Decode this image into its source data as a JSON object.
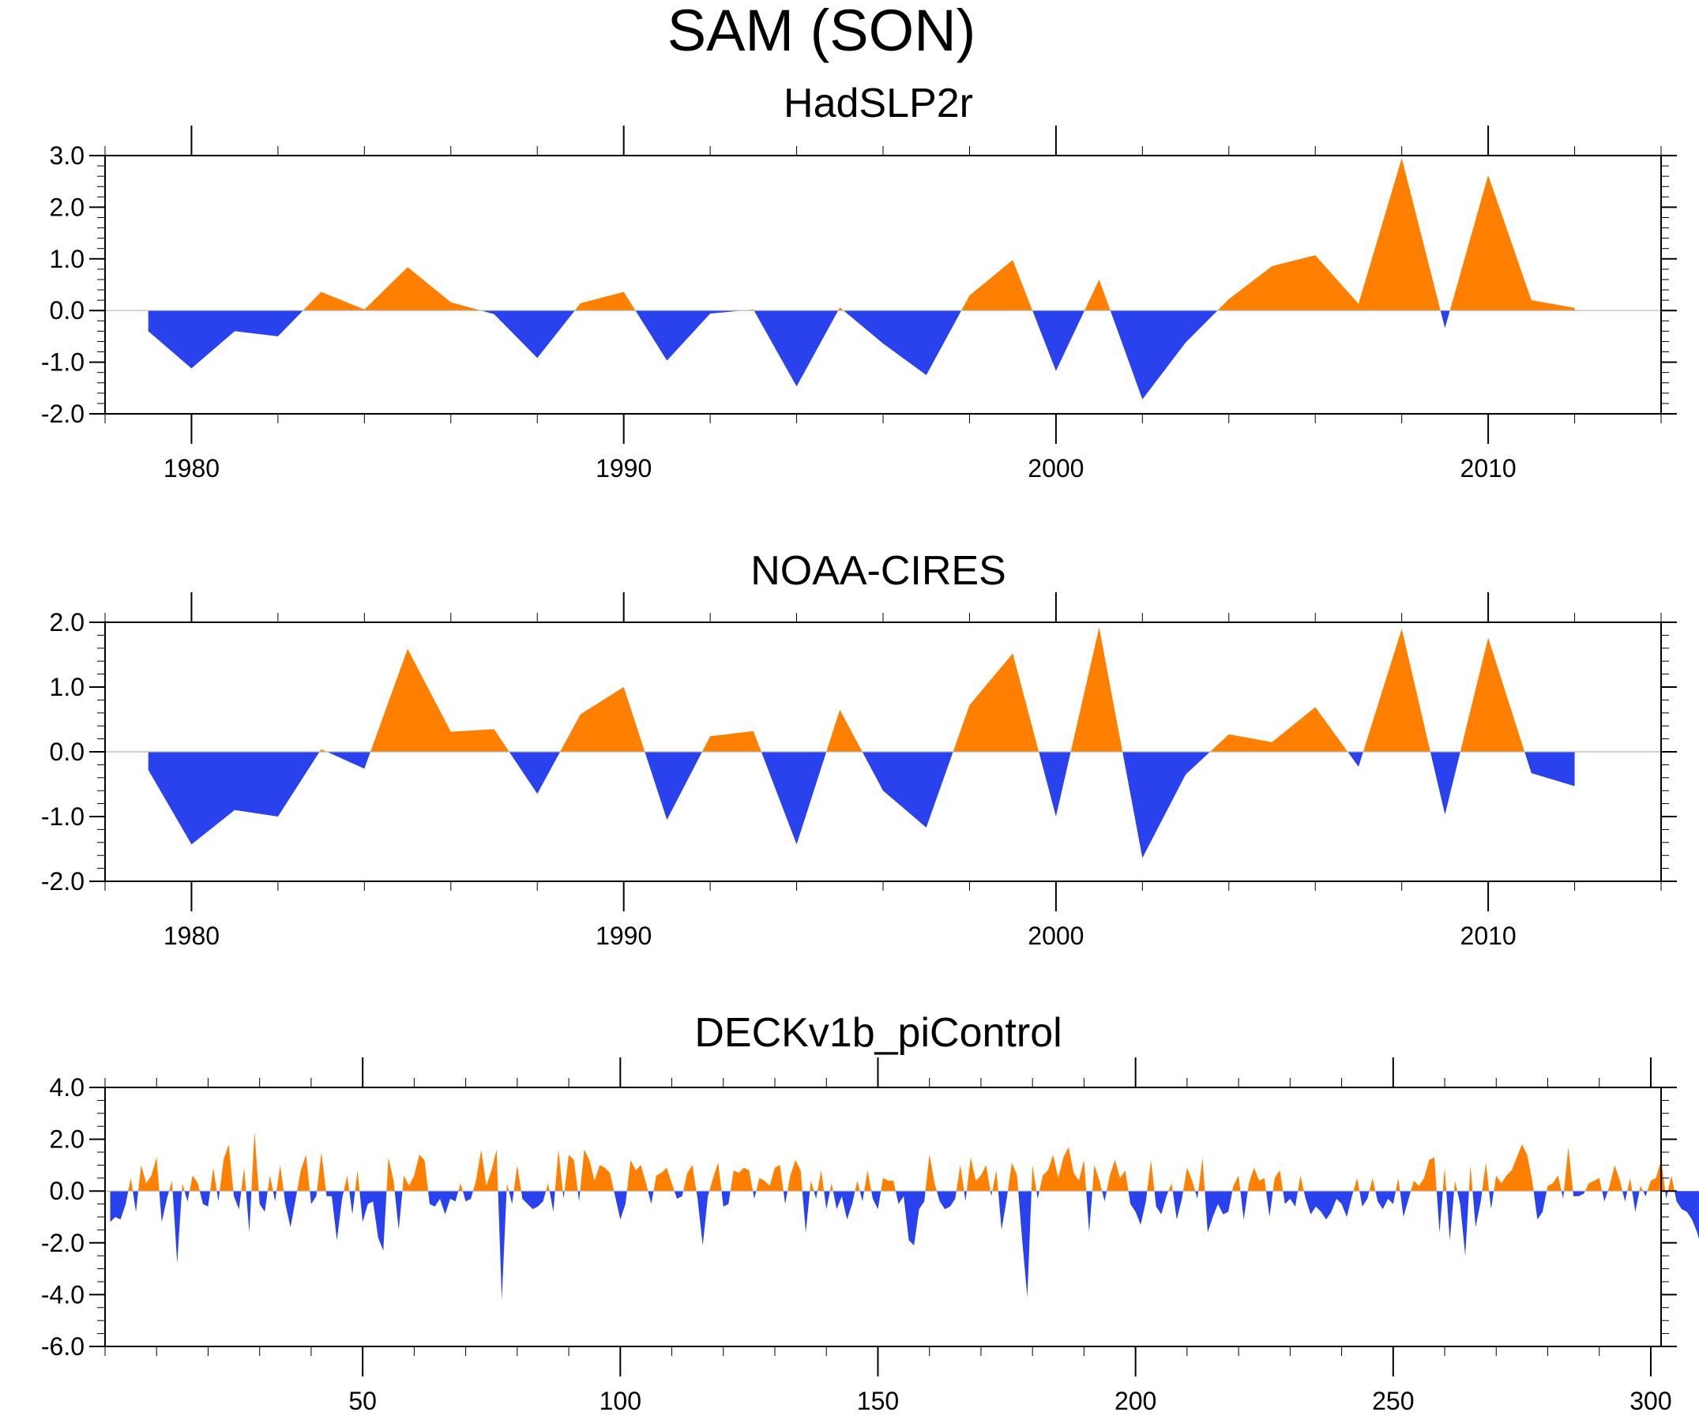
{
  "figure": {
    "title": "SAM (SON)"
  },
  "colors": {
    "positive": "#ff8000",
    "negative": "#2a41ee",
    "axis": "#000000",
    "zero_line": "#b4b4b4"
  },
  "chart_data": [
    {
      "type": "area",
      "title": "HadSLP2r",
      "xlabel": "",
      "ylabel": "",
      "xlim": [
        1978,
        2014
      ],
      "ylim": [
        -2.0,
        3.0
      ],
      "ytick_values": [
        -2.0,
        -1.0,
        0.0,
        1.0,
        2.0,
        3.0
      ],
      "ytick_labels": [
        "-2.0",
        "-1.0",
        "0.0",
        "1.0",
        "2.0",
        "3.0"
      ],
      "xtick_values": [
        1980,
        1990,
        2000,
        2010
      ],
      "xtick_labels": [
        "1980",
        "1990",
        "2000",
        "2010"
      ],
      "x": [
        1979,
        1980,
        1981,
        1982,
        1983,
        1984,
        1985,
        1986,
        1987,
        1988,
        1989,
        1990,
        1991,
        1992,
        1993,
        1994,
        1995,
        1996,
        1997,
        1998,
        1999,
        2000,
        2001,
        2002,
        2003,
        2004,
        2005,
        2006,
        2007,
        2008,
        2009,
        2010,
        2011,
        2012
      ],
      "values": [
        -0.4,
        -1.12,
        -0.4,
        -0.5,
        0.36,
        0.02,
        0.84,
        0.16,
        -0.07,
        -0.92,
        0.14,
        0.36,
        -0.97,
        -0.06,
        0.02,
        -1.47,
        0.06,
        -0.64,
        -1.25,
        0.29,
        0.98,
        -1.17,
        0.6,
        -1.72,
        -0.62,
        0.22,
        0.86,
        1.07,
        0.13,
        2.95,
        -0.34,
        2.62,
        0.2,
        0.05
      ]
    },
    {
      "type": "area",
      "title": "NOAA-CIRES",
      "xlabel": "",
      "ylabel": "",
      "xlim": [
        1978,
        2014
      ],
      "ylim": [
        -2.0,
        2.0
      ],
      "ytick_values": [
        -2.0,
        -1.0,
        0.0,
        1.0,
        2.0
      ],
      "ytick_labels": [
        "-2.0",
        "-1.0",
        "0.0",
        "1.0",
        "2.0"
      ],
      "xtick_values": [
        1980,
        1990,
        2000,
        2010
      ],
      "xtick_labels": [
        "1980",
        "1990",
        "2000",
        "2010"
      ],
      "x": [
        1979,
        1980,
        1981,
        1982,
        1983,
        1984,
        1985,
        1986,
        1987,
        1988,
        1989,
        1990,
        1991,
        1992,
        1993,
        1994,
        1995,
        1996,
        1997,
        1998,
        1999,
        2000,
        2001,
        2002,
        2003,
        2004,
        2005,
        2006,
        2007,
        2008,
        2009,
        2010,
        2011,
        2012
      ],
      "values": [
        -0.28,
        -1.43,
        -0.9,
        -1.0,
        0.04,
        -0.26,
        1.59,
        0.31,
        0.35,
        -0.65,
        0.58,
        1.0,
        -1.05,
        0.24,
        0.32,
        -1.43,
        0.65,
        -0.6,
        -1.17,
        0.72,
        1.52,
        -1.0,
        1.92,
        -1.64,
        -0.35,
        0.27,
        0.15,
        0.69,
        -0.23,
        1.9,
        -0.97,
        1.76,
        -0.33,
        -0.53
      ]
    },
    {
      "type": "area",
      "title": "DECKv1b_piControl",
      "xlabel": "",
      "ylabel": "",
      "xlim": [
        0,
        302
      ],
      "ylim": [
        -6.0,
        4.0
      ],
      "ytick_values": [
        -6.0,
        -4.0,
        -2.0,
        0.0,
        2.0,
        4.0
      ],
      "ytick_labels": [
        "-6.0",
        "-4.0",
        "-2.0",
        "0.0",
        "2.0",
        "4.0"
      ],
      "xtick_values": [
        50,
        100,
        150,
        200,
        250,
        300
      ],
      "xtick_labels": [
        "50",
        "100",
        "150",
        "200",
        "250",
        "300"
      ],
      "x_start": 1,
      "values": [
        -1.2,
        -1.0,
        -1.1,
        -0.5,
        0.5,
        -0.8,
        1.0,
        0.3,
        0.6,
        1.3,
        -1.2,
        -0.3,
        0.4,
        -2.8,
        0.3,
        -0.4,
        0.6,
        0.3,
        -0.5,
        -0.6,
        0.9,
        -0.4,
        1.2,
        1.8,
        -0.2,
        -0.7,
        0.9,
        -1.6,
        2.3,
        -0.5,
        -0.8,
        0.6,
        -0.4,
        1.0,
        -0.5,
        -1.4,
        -0.3,
        0.8,
        1.4,
        -0.5,
        -0.2,
        1.5,
        -0.2,
        -0.2,
        -1.9,
        -0.3,
        0.6,
        -0.9,
        0.8,
        -1.2,
        -0.5,
        -0.4,
        -1.8,
        -2.3,
        1.3,
        0.4,
        -1.5,
        0.6,
        0.2,
        0.6,
        1.4,
        1.2,
        -0.5,
        -0.6,
        -0.3,
        -0.9,
        -0.3,
        -0.4,
        0.3,
        -0.4,
        -0.3,
        0.4,
        1.6,
        0.2,
        0.8,
        1.6,
        -4.2,
        0.3,
        -0.5,
        1.0,
        -0.3,
        -0.5,
        -0.7,
        -0.6,
        -0.4,
        0.3,
        -0.8,
        1.6,
        -0.3,
        1.4,
        1.2,
        -0.4,
        1.6,
        1.2,
        0.4,
        1.0,
        0.9,
        0.7,
        -0.2,
        -1.1,
        -0.5,
        1.2,
        0.8,
        1.0,
        0.3,
        -0.5,
        0.6,
        0.7,
        0.9,
        0.3,
        -0.3,
        -0.2,
        0.7,
        1.0,
        -0.3,
        -2.1,
        -0.2,
        0.5,
        1.1,
        -0.6,
        -0.5,
        0.8,
        0.7,
        0.9,
        0.8,
        -0.3,
        0.5,
        0.4,
        0.2,
        0.9,
        1.0,
        -0.5,
        0.6,
        1.2,
        0.8,
        -1.6,
        0.4,
        -0.3,
        0.8,
        -0.7,
        0.3,
        -0.7,
        -0.2,
        -1.1,
        -0.5,
        0.4,
        -0.4,
        0.8,
        -0.3,
        -0.7,
        0.5,
        0.4,
        0.4,
        -0.5,
        -0.2,
        -1.9,
        -2.1,
        -0.7,
        -0.4,
        1.4,
        0.3,
        -0.4,
        -0.7,
        -0.6,
        -0.3,
        1.0,
        -0.4,
        1.3,
        0.4,
        0.6,
        1.0,
        -0.2,
        0.8,
        -1.5,
        -0.3,
        1.1,
        0.6,
        -1.9,
        -4.1,
        1.0,
        -0.3,
        0.6,
        0.8,
        1.4,
        0.5,
        1.3,
        1.7,
        0.7,
        0.4,
        1.2,
        -1.6,
        1.0,
        0.4,
        -0.4,
        0.6,
        1.2,
        0.5,
        0.8,
        -0.5,
        -0.8,
        -1.3,
        -0.4,
        1.2,
        -0.6,
        -0.9,
        -0.2,
        0.3,
        -1.1,
        -0.3,
        0.9,
        0.4,
        -0.3,
        1.3,
        -1.6,
        -1.0,
        -0.5,
        -0.9,
        -0.8,
        0.2,
        0.6,
        -1.1,
        0.3,
        0.9,
        0.4,
        0.5,
        -1.0,
        0.5,
        0.8,
        -0.5,
        -0.3,
        -0.6,
        0.6,
        -0.3,
        -0.9,
        -0.6,
        -0.8,
        -1.1,
        -0.8,
        -0.3,
        -0.5,
        -1.0,
        -0.2,
        0.5,
        -0.6,
        -0.3,
        0.5,
        -0.4,
        -0.7,
        -0.3,
        -0.5,
        0.5,
        -1.0,
        -0.3,
        0.4,
        0.2,
        0.5,
        1.2,
        1.3,
        -1.6,
        0.9,
        -1.9,
        0.4,
        -0.5,
        -2.5,
        1.0,
        -1.4,
        -0.4,
        1.1,
        -0.7,
        0.6,
        0.3,
        0.6,
        0.8,
        1.3,
        1.8,
        1.4,
        0.4,
        -1.1,
        -0.8,
        0.2,
        0.3,
        0.6,
        -0.3,
        1.7,
        -0.2,
        -0.2,
        -0.1,
        0.3,
        0.4,
        0.5,
        -0.4,
        0.2,
        1.0,
        0.4,
        -0.4,
        0.5,
        -0.8,
        0.2,
        -0.2,
        0.4,
        0.5,
        1.2,
        -0.3,
        0.6,
        -0.4,
        -0.7,
        -0.8,
        -1.1,
        -1.6,
        -2.3,
        -0.7,
        0.2,
        0.5,
        0.3,
        -0.6,
        -0.9,
        -0.5,
        0.2,
        0.6,
        -0.8,
        -1.5,
        -0.3,
        -1.6,
        -2.0,
        -0.4,
        -0.6,
        -0.6,
        -0.2,
        0.8,
        0.6,
        0.4,
        0.2,
        -0.7,
        -1.9,
        -0.5,
        0.6,
        -0.8,
        0.2,
        0.4,
        0.3,
        -0.3,
        -0.3,
        0.5,
        -1.8,
        0.2,
        0.8,
        -0.5,
        0.5,
        0.6,
        0.1
      ]
    }
  ]
}
